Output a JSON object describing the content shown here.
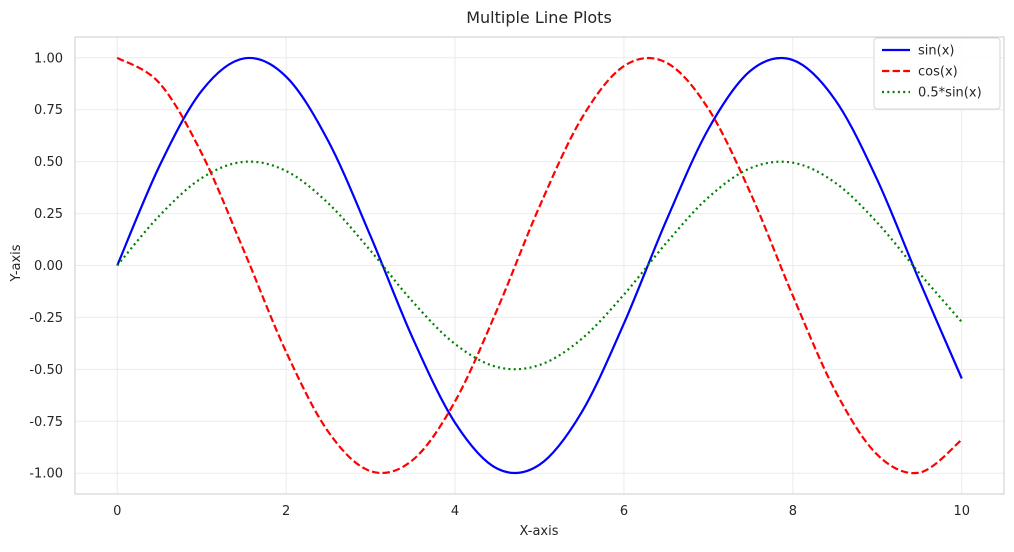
{
  "chart_data": {
    "type": "line",
    "title": "Multiple Line Plots",
    "xlabel": "X-axis",
    "ylabel": "Y-axis",
    "xlim": [
      -0.5,
      10.5
    ],
    "ylim": [
      -1.1,
      1.1
    ],
    "x_ticks": [
      0,
      2,
      4,
      6,
      8,
      10
    ],
    "x_tick_labels": [
      "0",
      "2",
      "4",
      "6",
      "8",
      "10"
    ],
    "y_ticks": [
      -1.0,
      -0.75,
      -0.5,
      -0.25,
      0.0,
      0.25,
      0.5,
      0.75,
      1.0
    ],
    "y_tick_labels": [
      "-1.00",
      "-0.75",
      "-0.50",
      "-0.25",
      "0.00",
      "0.25",
      "0.50",
      "0.75",
      "1.00"
    ],
    "grid": true,
    "legend_position": "top-right",
    "x": [
      0,
      0.5,
      1,
      1.5,
      2,
      2.5,
      3,
      3.5,
      4,
      4.5,
      5,
      5.5,
      6,
      6.5,
      7,
      7.5,
      8,
      8.5,
      9,
      9.5,
      10
    ],
    "series": [
      {
        "name": "sin(x)",
        "color": "#0000ff",
        "style": "solid",
        "values": [
          0.0,
          0.479,
          0.841,
          0.997,
          0.909,
          0.598,
          0.141,
          -0.351,
          -0.757,
          -0.978,
          -0.959,
          -0.706,
          -0.279,
          0.215,
          0.657,
          0.938,
          0.989,
          0.798,
          0.412,
          -0.075,
          -0.544
        ]
      },
      {
        "name": "cos(x)",
        "color": "#ff0000",
        "style": "dashed",
        "values": [
          1.0,
          0.878,
          0.54,
          0.071,
          -0.416,
          -0.801,
          -0.99,
          -0.936,
          -0.654,
          -0.211,
          0.284,
          0.709,
          0.96,
          0.977,
          0.754,
          0.347,
          -0.146,
          -0.602,
          -0.911,
          -0.997,
          -0.839
        ]
      },
      {
        "name": "0.5*sin(x)",
        "color": "#008000",
        "style": "dotted",
        "values": [
          0.0,
          0.24,
          0.421,
          0.499,
          0.455,
          0.299,
          0.071,
          -0.175,
          -0.378,
          -0.489,
          -0.479,
          -0.353,
          -0.14,
          0.108,
          0.328,
          0.469,
          0.495,
          0.399,
          0.206,
          -0.038,
          -0.272
        ]
      }
    ]
  }
}
